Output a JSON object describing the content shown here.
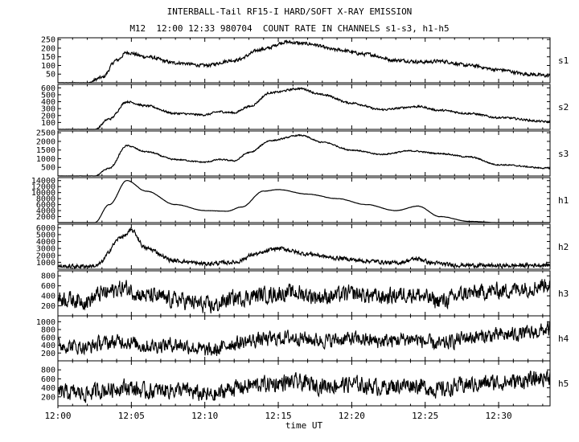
{
  "title": "INTERBALL-Tail RF15-I HARD/SOFT X-RAY EMISSION",
  "subtitle": "M12  12:00 12:33 980704  COUNT RATE IN CHANNELS s1-s3, h1-h5",
  "chart_data": {
    "type": "line",
    "title": "INTERBALL-Tail RF15-I HARD/SOFT X-RAY EMISSION",
    "subtitle": "M12  12:00 12:33 980704  COUNT RATE IN CHANNELS s1-s3, h1-h5",
    "xlabel": "time UT",
    "x_ticks": [
      "12:00",
      "12:05",
      "12:10",
      "12:15",
      "12:20",
      "12:25",
      "12:30"
    ],
    "x_tick_minutes": [
      0,
      5,
      10,
      15,
      20,
      25,
      30
    ],
    "xlim_minutes": [
      0,
      33.5
    ],
    "grid": false,
    "line_color": "#000000",
    "series": [
      {
        "name": "s1",
        "ylim": [
          0,
          260
        ],
        "yticks": [
          50,
          100,
          150,
          200,
          250
        ],
        "noise": 0.05,
        "t": [
          0,
          2,
          3,
          4,
          4.7,
          6,
          8,
          10,
          12,
          14,
          15.5,
          17,
          19,
          21,
          23,
          25,
          26,
          28,
          30,
          32,
          33.5
        ],
        "v": [
          0,
          0,
          30,
          130,
          175,
          150,
          115,
          100,
          130,
          195,
          235,
          225,
          190,
          165,
          130,
          120,
          125,
          100,
          75,
          50,
          40
        ]
      },
      {
        "name": "s2",
        "ylim": [
          0,
          650
        ],
        "yticks": [
          100,
          200,
          300,
          400,
          500,
          600
        ],
        "noise": 0.03,
        "t": [
          0,
          2.5,
          3.5,
          4.7,
          6,
          8,
          10,
          11,
          12,
          13,
          14.5,
          16.5,
          18,
          20,
          22,
          24.5,
          26,
          28,
          30,
          33.5
        ],
        "v": [
          0,
          0,
          150,
          400,
          340,
          230,
          210,
          255,
          240,
          330,
          530,
          590,
          500,
          380,
          285,
          330,
          275,
          230,
          170,
          110
        ]
      },
      {
        "name": "s3",
        "ylim": [
          0,
          2600
        ],
        "yticks": [
          500,
          1000,
          1500,
          2000,
          2500
        ],
        "noise": 0.02,
        "t": [
          0,
          2.5,
          3.5,
          4.7,
          6,
          8,
          10,
          11,
          12,
          13,
          14.5,
          16.5,
          18,
          20,
          22,
          24,
          26,
          28,
          30,
          33.5
        ],
        "v": [
          0,
          0,
          450,
          1750,
          1400,
          950,
          800,
          950,
          880,
          1350,
          2050,
          2350,
          1950,
          1500,
          1250,
          1450,
          1300,
          1100,
          650,
          450
        ]
      },
      {
        "name": "h1",
        "ylim": [
          0,
          15000
        ],
        "yticks": [
          2000,
          4000,
          6000,
          8000,
          10000,
          12000,
          14000
        ],
        "noise": 0.004,
        "t": [
          0,
          2.5,
          3.5,
          4.7,
          6,
          8,
          10,
          11.5,
          12.5,
          14,
          15,
          17,
          19,
          21,
          23,
          24.5,
          26,
          28,
          30,
          33.5
        ],
        "v": [
          0,
          0,
          6000,
          14000,
          10500,
          6000,
          4000,
          3800,
          5200,
          10500,
          11000,
          9500,
          8000,
          6000,
          4000,
          5500,
          2000,
          400,
          0,
          0
        ]
      },
      {
        "name": "h2",
        "ylim": [
          0,
          6500
        ],
        "yticks": [
          1000,
          2000,
          3000,
          4000,
          5000,
          6000
        ],
        "noise": 0.06,
        "t": [
          0,
          2.5,
          4.5,
          5,
          6,
          8,
          10,
          12,
          13.5,
          15,
          17,
          19,
          21,
          23,
          24.5,
          25.5,
          27,
          30,
          33.5
        ],
        "v": [
          400,
          450,
          4800,
          5600,
          3000,
          1200,
          800,
          1000,
          2200,
          3000,
          2200,
          1600,
          1200,
          900,
          1500,
          900,
          600,
          500,
          600
        ]
      },
      {
        "name": "h3",
        "ylim": [
          0,
          900
        ],
        "yticks": [
          200,
          400,
          600,
          800
        ],
        "noise": 0.25,
        "t": [
          0,
          2,
          3,
          4.5,
          6,
          8,
          10.5,
          12,
          14,
          16,
          18,
          20,
          22,
          24,
          26,
          28,
          30,
          32,
          33.5
        ],
        "v": [
          350,
          300,
          450,
          550,
          400,
          320,
          200,
          350,
          420,
          460,
          380,
          440,
          380,
          440,
          300,
          450,
          500,
          560,
          650
        ]
      },
      {
        "name": "h4",
        "ylim": [
          0,
          1150
        ],
        "yticks": [
          200,
          400,
          600,
          800,
          1000
        ],
        "noise": 0.22,
        "t": [
          0,
          2,
          3,
          4.5,
          6,
          8,
          10.5,
          12,
          14,
          16,
          18,
          20,
          22,
          24,
          26,
          28,
          30,
          32,
          33.5
        ],
        "v": [
          400,
          350,
          450,
          500,
          380,
          420,
          250,
          450,
          550,
          600,
          520,
          560,
          500,
          560,
          420,
          600,
          650,
          700,
          800
        ]
      },
      {
        "name": "h5",
        "ylim": [
          0,
          1000
        ],
        "yticks": [
          200,
          400,
          600,
          800
        ],
        "noise": 0.25,
        "t": [
          0,
          2,
          3,
          4.5,
          6,
          8,
          10.5,
          12,
          14,
          16,
          18,
          20,
          22,
          24,
          26,
          28,
          30,
          32,
          33.5
        ],
        "v": [
          300,
          280,
          350,
          420,
          320,
          360,
          230,
          400,
          480,
          520,
          450,
          480,
          420,
          470,
          360,
          470,
          520,
          560,
          650
        ]
      }
    ]
  }
}
